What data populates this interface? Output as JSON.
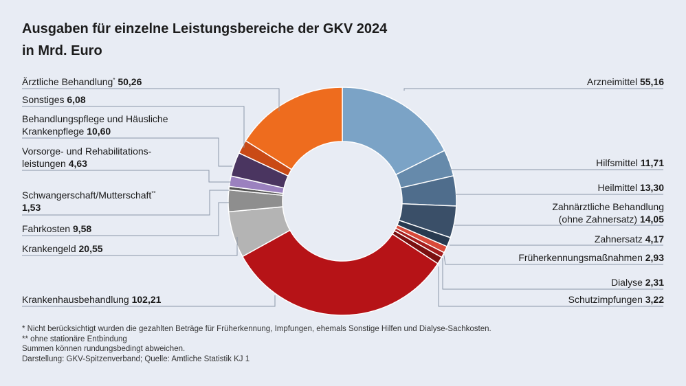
{
  "title": {
    "line1": "Ausgaben für einzelne Leistungsbereiche der GKV 2024",
    "line2": "in Mrd. Euro"
  },
  "chart_data": {
    "type": "pie",
    "variant": "donut",
    "unit": "Mrd. Euro",
    "slices": [
      {
        "key": "arzneimittel",
        "label": "Arzneimittel",
        "value_text": "55,16",
        "value": 55.16,
        "color": "#7ba3c6"
      },
      {
        "key": "hilfsmittel",
        "label": "Hilfsmittel",
        "value_text": "11,71",
        "value": 11.71,
        "color": "#668aab"
      },
      {
        "key": "heilmittel",
        "label": "Heilmittel",
        "value_text": "13,30",
        "value": 13.3,
        "color": "#4f6d8c"
      },
      {
        "key": "zahnaerztlich",
        "label1": "Zahnärztliche Behandlung",
        "label2": "(ohne Zahnersatz)",
        "value_text": "14,05",
        "value": 14.05,
        "color": "#3a4f68"
      },
      {
        "key": "zahnersatz",
        "label": "Zahnersatz",
        "value_text": "4,17",
        "value": 4.17,
        "color": "#283a50"
      },
      {
        "key": "frueherkennung",
        "label": "Früherkennungsmaßnahmen",
        "value_text": "2,93",
        "value": 2.93,
        "color": "#d94a3a"
      },
      {
        "key": "dialyse",
        "label": "Dialyse",
        "value_text": "2,31",
        "value": 2.31,
        "color": "#a41d1d"
      },
      {
        "key": "schutzimpfungen",
        "label": "Schutzimpfungen",
        "value_text": "3,22",
        "value": 3.22,
        "color": "#7a1010"
      },
      {
        "key": "krankenhaus",
        "label": "Krankenhausbehandlung",
        "value_text": "102,21",
        "value": 102.21,
        "color": "#b61317"
      },
      {
        "key": "krankengeld",
        "label": "Krankengeld",
        "value_text": "20,55",
        "value": 20.55,
        "color": "#b4b4b4"
      },
      {
        "key": "fahrkosten",
        "label": "Fahrkosten",
        "value_text": "9,58",
        "value": 9.58,
        "color": "#8e8e8e"
      },
      {
        "key": "schwangerschaft",
        "label": "Schwangerschaft/Mutterschaft",
        "mark": "**",
        "value_text": "1,53",
        "value": 1.53,
        "color": "#555555"
      },
      {
        "key": "vorsorge",
        "label1": "Vorsorge- und Rehabilitations-",
        "label2": "leistungen",
        "value_text": "4,63",
        "value": 4.63,
        "color": "#9b81bf"
      },
      {
        "key": "behandlungspflege",
        "label1": "Behandlungspflege und Häusliche",
        "label2": "Krankenpflege",
        "value_text": "10,60",
        "value": 10.6,
        "color": "#4a3560"
      },
      {
        "key": "sonstiges",
        "label": "Sonstiges",
        "value_text": "6,08",
        "value": 6.08,
        "color": "#c94a16"
      },
      {
        "key": "aerztlich",
        "label": "Ärztliche Behandlung",
        "mark": "*",
        "value_text": "50,26",
        "value": 50.26,
        "color": "#ee6c1e"
      }
    ]
  },
  "notes": {
    "n1": "*   Nicht berücksichtigt wurden die gezahlten Beträge für Früherkennung, Impfungen, ehemals Sonstige Hilfen und Dialyse-Sachkosten.",
    "n2": "** ohne stationäre Entbindung",
    "n3": "Summen können rundungsbedingt abweichen.",
    "n4": "Darstellung: GKV-Spitzenverband; Quelle: Amtliche Statistik KJ 1"
  }
}
